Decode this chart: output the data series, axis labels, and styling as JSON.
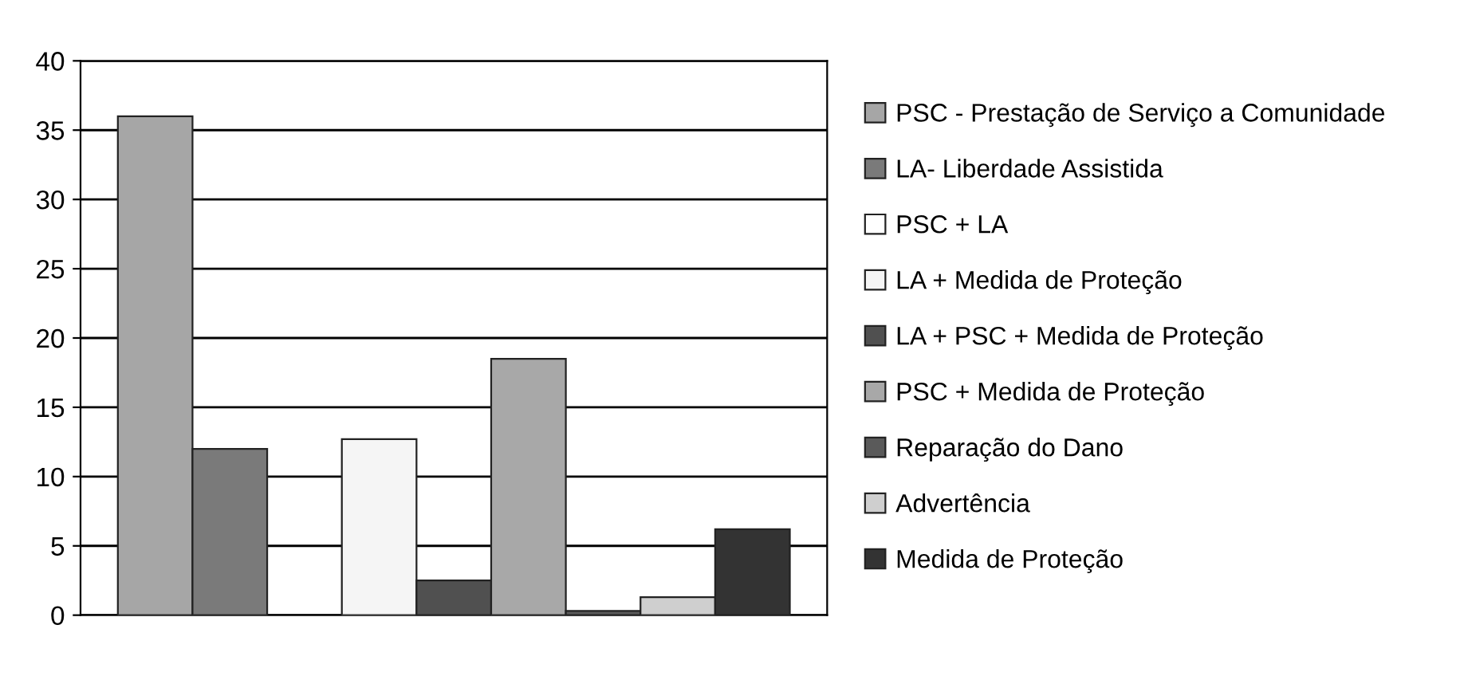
{
  "chart_data": {
    "type": "bar",
    "categories": [
      null
    ],
    "series": [
      {
        "name": "PSC - Prestação de Serviço a Comunidade",
        "color": "#a6a6a6",
        "values": [
          36
        ]
      },
      {
        "name": "LA- Liberdade Assistida",
        "color": "#7a7a7a",
        "values": [
          12
        ]
      },
      {
        "name": "PSC + LA",
        "color": "#ffffff",
        "values": [
          0
        ]
      },
      {
        "name": "LA + Medida de Proteção",
        "color": "#f5f5f5",
        "values": [
          12.7
        ]
      },
      {
        "name": "LA + PSC + Medida de Proteção",
        "color": "#505050",
        "values": [
          2.5
        ]
      },
      {
        "name": "PSC + Medida de Proteção",
        "color": "#a8a8a8",
        "values": [
          18.5
        ]
      },
      {
        "name": "Reparação do Dano",
        "color": "#5a5a5a",
        "values": [
          0.3
        ]
      },
      {
        "name": "Advertência",
        "color": "#cfcfcf",
        "values": [
          1.3
        ]
      },
      {
        "name": "Medida de Proteção",
        "color": "#333333",
        "values": [
          6.2
        ]
      }
    ],
    "ylim": [
      0,
      40
    ],
    "yticks": [
      0,
      5,
      10,
      15,
      20,
      25,
      30,
      35,
      40
    ],
    "grid": "y",
    "legend": "right"
  }
}
